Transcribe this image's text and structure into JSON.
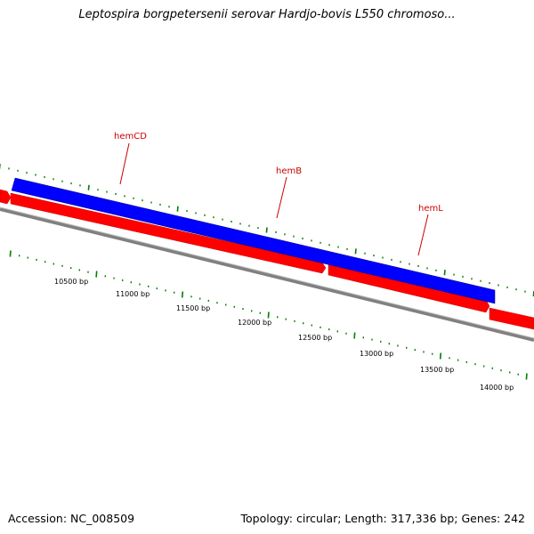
{
  "title": "Leptospira borgpetersenii serovar Hardjo-bovis L550 chromoso...",
  "footer": {
    "accession": "Accession: NC_008509",
    "summary": "Topology: circular; Length: 317,336 bp; Genes: 242"
  },
  "colors": {
    "forward_gene": "#ff0000",
    "reverse_gene": "#0000ff",
    "backbone": "#808080",
    "ticks": "#008000",
    "gene_label": "#cc0000"
  },
  "genes": [
    {
      "label": "hemCD",
      "strand": "reverse"
    },
    {
      "label": "hemB",
      "strand": "forward"
    },
    {
      "label": "hemL",
      "strand": "reverse"
    }
  ],
  "scale_labels": [
    "10500 bp",
    "11000 bp",
    "11500 bp",
    "12000 bp",
    "12500 bp",
    "13000 bp",
    "13500 bp",
    "14000 bp"
  ]
}
